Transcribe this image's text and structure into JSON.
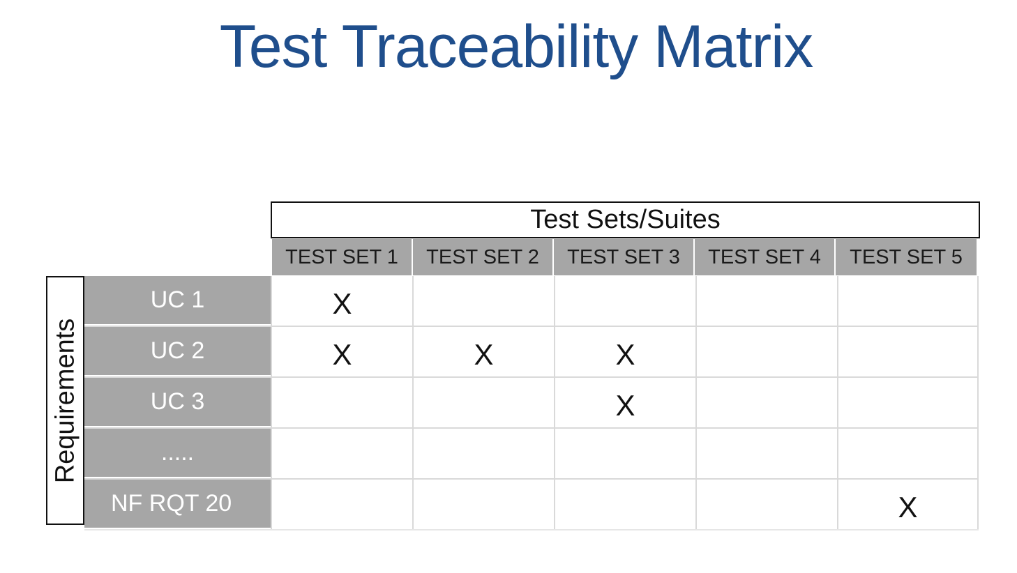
{
  "title": "Test Traceability Matrix",
  "columns_group_label": "Test Sets/Suites",
  "rows_group_label": "Requirements",
  "columns": [
    "TEST SET 1",
    "TEST SET 2",
    "TEST SET 3",
    "TEST SET 4",
    "TEST SET 5"
  ],
  "rows": [
    {
      "label": "UC 1",
      "cells": [
        "X",
        "",
        "",
        "",
        ""
      ]
    },
    {
      "label": "UC 2",
      "cells": [
        "X",
        "X",
        "X",
        "",
        ""
      ]
    },
    {
      "label": "UC 3",
      "cells": [
        "",
        "",
        "X",
        "",
        ""
      ]
    },
    {
      "label": ".....",
      "cells": [
        "",
        "",
        "",
        "",
        ""
      ]
    },
    {
      "label": "NF RQT 20",
      "cells": [
        "",
        "",
        "",
        "",
        "X"
      ]
    }
  ],
  "colors": {
    "title": "#1f4e8c",
    "header_fill": "#a6a6a6",
    "row_header_text": "#ffffff",
    "grid_line": "#d9d9d9"
  }
}
